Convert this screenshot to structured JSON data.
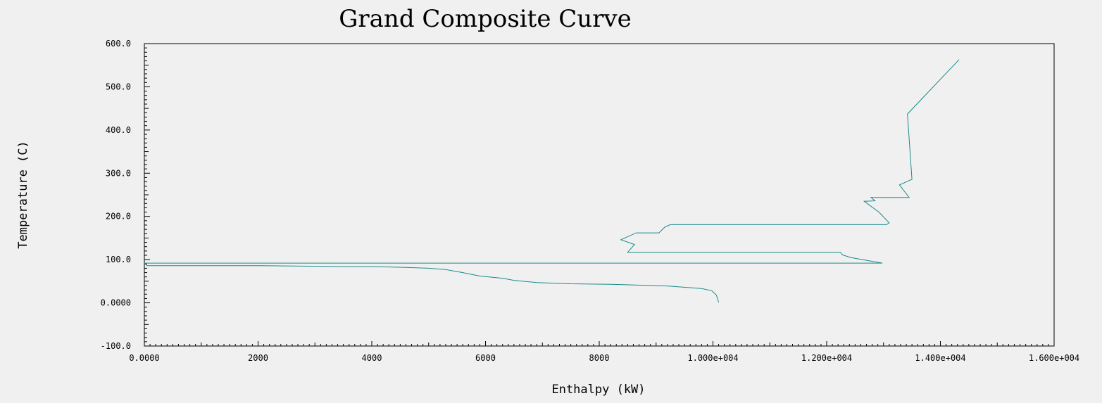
{
  "chart_data": {
    "type": "line",
    "title": "Grand Composite Curve",
    "xlabel": "Enthalpy (kW)",
    "ylabel": "Temperature (C)",
    "xlim": [
      0,
      16000
    ],
    "ylim": [
      -100,
      600
    ],
    "x_ticks": [
      {
        "value": 0,
        "label": "0.0000"
      },
      {
        "value": 2000,
        "label": "2000"
      },
      {
        "value": 4000,
        "label": "4000"
      },
      {
        "value": 6000,
        "label": "6000"
      },
      {
        "value": 8000,
        "label": "8000"
      },
      {
        "value": 10000,
        "label": "1.000e+004"
      },
      {
        "value": 12000,
        "label": "1.200e+004"
      },
      {
        "value": 14000,
        "label": "1.400e+004"
      },
      {
        "value": 16000,
        "label": "1.600e+004"
      }
    ],
    "y_ticks": [
      {
        "value": 600,
        "label": "600.0"
      },
      {
        "value": 500,
        "label": "500.0"
      },
      {
        "value": 400,
        "label": "400.0"
      },
      {
        "value": 300,
        "label": "300.0"
      },
      {
        "value": 200,
        "label": "200.0"
      },
      {
        "value": 100,
        "label": "100.0"
      },
      {
        "value": 0,
        "label": "0.0000"
      },
      {
        "value": -100,
        "label": "-100.0"
      }
    ],
    "grid": false,
    "legend": "none",
    "line_color": "#1a8a8a",
    "series": [
      {
        "points": [
          [
            14330,
            563
          ],
          [
            13420,
            437
          ],
          [
            13500,
            286
          ],
          [
            13280,
            273
          ],
          [
            13450,
            244
          ],
          [
            12780,
            244
          ],
          [
            12850,
            236
          ],
          [
            12660,
            235
          ],
          [
            12920,
            210
          ],
          [
            13100,
            185
          ],
          [
            13050,
            181
          ],
          [
            9250,
            181
          ],
          [
            9150,
            175
          ],
          [
            9050,
            162
          ],
          [
            8650,
            162
          ],
          [
            8380,
            146
          ],
          [
            8620,
            135
          ],
          [
            8500,
            117
          ],
          [
            12240,
            117
          ],
          [
            12280,
            111
          ],
          [
            12420,
            105
          ],
          [
            12980,
            92
          ],
          [
            0,
            92
          ],
          [
            50,
            86
          ],
          [
            2000,
            86
          ],
          [
            3500,
            84
          ],
          [
            4000,
            84
          ],
          [
            4600,
            82
          ],
          [
            5000,
            80
          ],
          [
            5300,
            77
          ],
          [
            5600,
            70
          ],
          [
            5900,
            62
          ],
          [
            6300,
            57
          ],
          [
            6500,
            52
          ],
          [
            6900,
            47
          ],
          [
            7500,
            44
          ],
          [
            8200,
            43
          ],
          [
            9200,
            39
          ],
          [
            9800,
            33
          ],
          [
            9980,
            28
          ],
          [
            10060,
            18
          ],
          [
            10100,
            1
          ]
        ]
      }
    ]
  }
}
